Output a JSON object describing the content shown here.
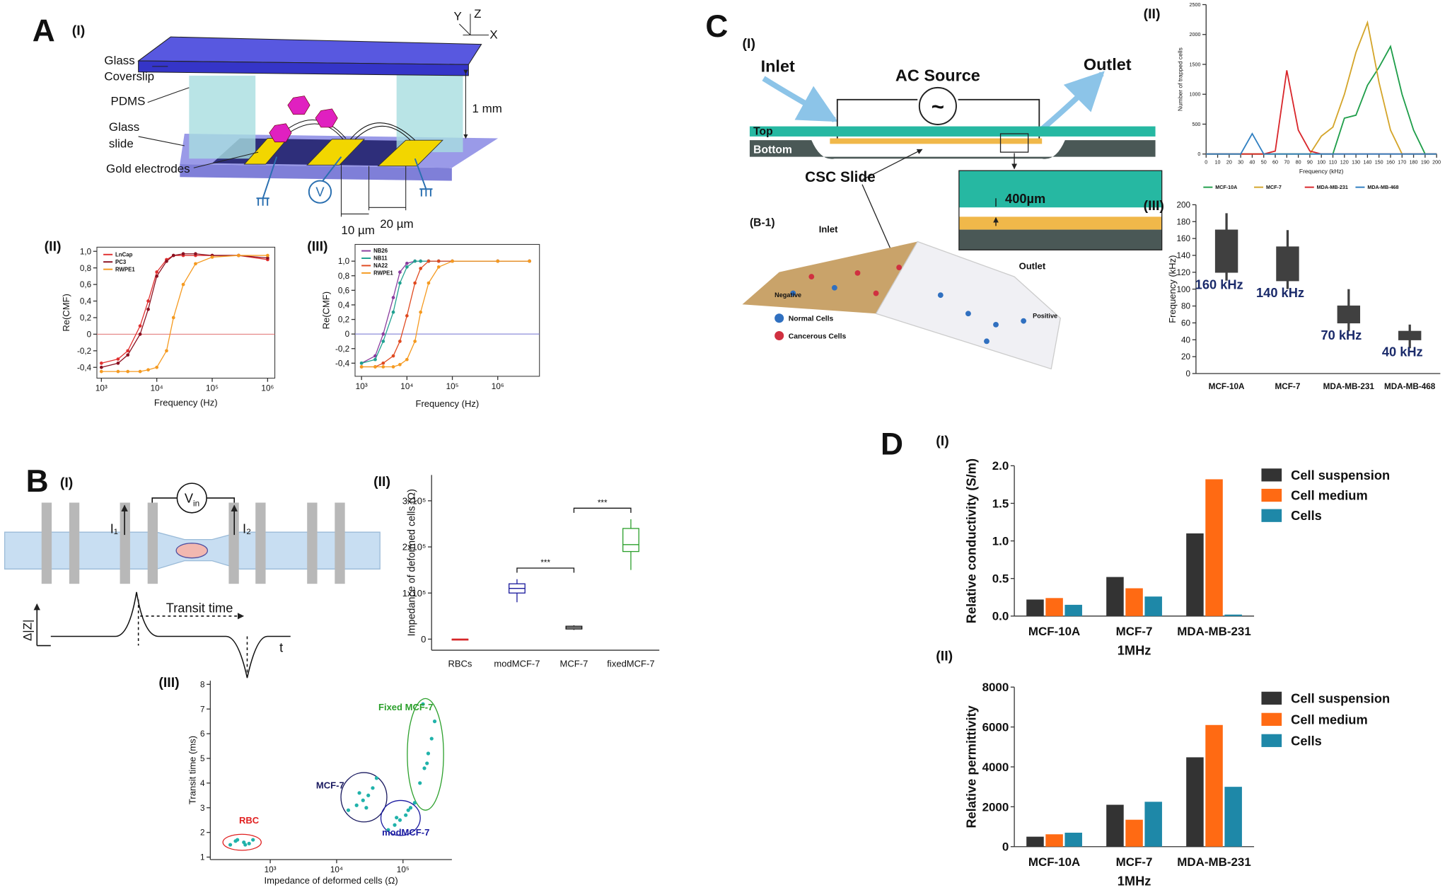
{
  "figure": {
    "panel_labels": [
      "A",
      "B",
      "C",
      "D"
    ],
    "diagram_subpanels": [
      "(I)",
      "(I)",
      "(I)"
    ],
    "diagram_a": {
      "coverslip": [
        "Glass",
        "Coverslip"
      ],
      "pdms": "PDMS",
      "slide": [
        "Glass",
        "slide"
      ],
      "electrodes": "Gold electrodes",
      "height": "1 mm",
      "gap_1": "10 µm",
      "gap_2": "20 µm",
      "voltage": "V",
      "axes": [
        "Y",
        "Z",
        "X"
      ]
    },
    "diagram_b": {
      "current_1": "I₁",
      "voltage": [
        "V",
        "in"
      ],
      "current_2": "I₂",
      "transit": "Transit time",
      "signal": "Δ|Z|",
      "time": "t"
    },
    "diagram_c": {
      "inlet": "Inlet",
      "source": "AC Source",
      "outlet": "Outlet",
      "top": "Top",
      "bottom": "Bottom",
      "slide": "CSC Slide",
      "sub": "(B-1)",
      "gap": "400µm",
      "symbol": "~",
      "inlet_3d": "Inlet",
      "outlet_3d": "Outlet",
      "negative": "Negative",
      "positive": "Positive",
      "normal": "Normal Cells",
      "cancer": "Cancerous Cells"
    }
  },
  "chart_data": [
    {
      "type": "line",
      "panel": "(II)",
      "ylabel": "Re(CMF)",
      "xlabel": "Frequency (Hz)",
      "xlog": true,
      "xlim": [
        830,
        1350000
      ],
      "xticks": [
        {
          "value": 1000,
          "label": "10³"
        },
        {
          "value": 10000,
          "label": "10⁴"
        },
        {
          "value": 100000,
          "label": "10⁵"
        },
        {
          "value": 1000000,
          "label": "10⁶"
        }
      ],
      "ylim": [
        -0.53,
        1.05
      ],
      "yticks": [
        {
          "value": -0.4,
          "label": "-0,4"
        },
        {
          "value": -0.2,
          "label": "-0,2"
        },
        0,
        {
          "value": 0.2,
          "label": "0,2"
        },
        {
          "value": 0.4,
          "label": "0,4"
        },
        {
          "value": 0.6,
          "label": "0,6"
        },
        {
          "value": 0.8,
          "label": "0,8"
        },
        {
          "value": 1,
          "label": "1,0"
        }
      ],
      "hline": 0,
      "hline_color": "#e07070",
      "legend": "upper-left",
      "x": [
        1000,
        2000,
        3000,
        5000,
        7000,
        10000,
        15000,
        20000,
        30000,
        50000,
        100000,
        300000,
        1000000
      ],
      "series": [
        {
          "name": "LnCap",
          "color": "#e03030",
          "values": [
            -0.35,
            -0.3,
            -0.2,
            0.1,
            0.4,
            0.75,
            0.9,
            0.95,
            0.95,
            0.95,
            0.95,
            0.95,
            0.9
          ]
        },
        {
          "name": "PC3",
          "color": "#8b1020",
          "values": [
            -0.4,
            -0.35,
            -0.25,
            0,
            0.3,
            0.7,
            0.88,
            0.95,
            0.97,
            0.97,
            0.95,
            0.95,
            0.92
          ]
        },
        {
          "name": "RWPE1",
          "color": "#f59a20",
          "values": [
            -0.45,
            -0.45,
            -0.45,
            -0.45,
            -0.43,
            -0.4,
            -0.2,
            0.2,
            0.6,
            0.85,
            0.93,
            0.95,
            0.95
          ]
        }
      ]
    },
    {
      "type": "line",
      "panel": "(III)",
      "ylabel": "Re(CMF)",
      "xlabel": "Frequency (Hz)",
      "xlog": true,
      "xlim": [
        720,
        8300000
      ],
      "xticks": [
        {
          "value": 1000,
          "label": "10³"
        },
        {
          "value": 10000,
          "label": "10⁴"
        },
        {
          "value": 100000,
          "label": "10⁵"
        },
        {
          "value": 1000000,
          "label": "10⁶"
        }
      ],
      "ylim": [
        -0.58,
        1.23
      ],
      "yticks": [
        {
          "value": -0.4,
          "label": "-0,4"
        },
        {
          "value": -0.2,
          "label": "-0,2"
        },
        0,
        {
          "value": 0.2,
          "label": "0,2"
        },
        {
          "value": 0.4,
          "label": "0,4"
        },
        {
          "value": 0.6,
          "label": "0,6"
        },
        {
          "value": 0.8,
          "label": "0,8"
        },
        {
          "value": 1,
          "label": "1,0"
        }
      ],
      "hline": 0,
      "hline_color": "#7070d0",
      "legend": "upper-left",
      "x": [
        1000,
        2000,
        3000,
        5000,
        7000,
        10000,
        15000,
        20000,
        30000,
        50000,
        100000,
        1000000,
        5000000
      ],
      "series": [
        {
          "name": "NB26",
          "color": "#8a3d9e",
          "values": [
            -0.4,
            -0.3,
            0,
            0.5,
            0.85,
            0.97,
            1,
            1,
            1,
            1,
            1,
            1,
            1
          ]
        },
        {
          "name": "NB11",
          "color": "#20a090",
          "values": [
            -0.4,
            -0.35,
            -0.1,
            0.3,
            0.7,
            0.92,
            1,
            1,
            1,
            1,
            1,
            1,
            1
          ]
        },
        {
          "name": "NA22",
          "color": "#e04a20",
          "values": [
            -0.45,
            -0.45,
            -0.4,
            -0.3,
            -0.1,
            0.25,
            0.7,
            0.9,
            1,
            1,
            1,
            1,
            1
          ]
        },
        {
          "name": "RWPE1",
          "color": "#f59a20",
          "values": [
            -0.45,
            -0.45,
            -0.45,
            -0.45,
            -0.42,
            -0.35,
            -0.1,
            0.3,
            0.7,
            0.92,
            1,
            1,
            1
          ]
        }
      ]
    },
    {
      "type": "box",
      "panel": "(II)",
      "ylabel": "Impedance of deformed cells (Ω)",
      "ylim": [
        -24000,
        356000
      ],
      "yticks": [
        0,
        {
          "value": 100000,
          "label": "1x10⁵"
        },
        {
          "value": 200000,
          "label": "2x10⁵"
        },
        {
          "value": 300000,
          "label": "3x10⁵"
        }
      ],
      "categories": [
        "RBCs",
        "modMCF-7",
        "MCF-7",
        "fixedMCF-7"
      ],
      "colors": [
        "#d62728",
        "#1a1a9c",
        "#111111",
        "#2ca02c"
      ],
      "low": [
        0,
        80000,
        20000,
        150000
      ],
      "q1": [
        0,
        100000,
        22000,
        190000
      ],
      "median": [
        0,
        110000,
        25000,
        205000
      ],
      "q3": [
        0,
        120000,
        28000,
        240000
      ],
      "high": [
        0,
        130000,
        30000,
        260000
      ],
      "significance": [
        "***",
        "***"
      ]
    },
    {
      "type": "scatter",
      "panel": "(III)",
      "ylabel": "Transit time (ms)",
      "xlabel": "Impedance of deformed cells (Ω)",
      "xlog": true,
      "xlim": [
        125,
        545000
      ],
      "xticks": [
        {
          "value": 1000,
          "label": "10³"
        },
        {
          "value": 10000,
          "label": "10⁴"
        },
        {
          "value": 100000,
          "label": "10⁵"
        }
      ],
      "ylim": [
        0.9,
        8.15
      ],
      "yticks": [
        1,
        2,
        3,
        4,
        5,
        6,
        7,
        8
      ],
      "marker_color": "#20b2aa",
      "series": [
        {
          "name": "RBC",
          "color": "#e02020",
          "x": [
            250,
            320,
            400,
            480,
            550,
            300,
            420
          ],
          "values": [
            1.5,
            1.7,
            1.6,
            1.55,
            1.7,
            1.65,
            1.5
          ]
        },
        {
          "name": "MCF-7",
          "color": "#1a1a60",
          "x": [
            15000,
            20000,
            25000,
            30000,
            35000,
            22000,
            28000,
            40000
          ],
          "values": [
            2.9,
            3.1,
            3.3,
            3.5,
            3.8,
            3.6,
            3,
            4.2
          ]
        },
        {
          "name": "Fixed MCF-7",
          "color": "#2ca02c",
          "x": [
            150000,
            180000,
            210000,
            240000,
            270000,
            300000,
            200000,
            230000
          ],
          "values": [
            3.2,
            4,
            4.6,
            5.2,
            5.8,
            6.5,
            7.2,
            4.8
          ]
        },
        {
          "name": "modMCF-7",
          "color": "#1a1aa0",
          "x": [
            60000,
            75000,
            90000,
            110000,
            130000,
            80000,
            120000
          ],
          "values": [
            2.1,
            2.3,
            2.5,
            2.7,
            3,
            2.6,
            2.9
          ]
        }
      ]
    },
    {
      "type": "line",
      "panel": "(II)",
      "ylabel": "Number of trapped cells",
      "xlabel": "Frequency (kHz)",
      "xlim": [
        0,
        200
      ],
      "xticks": [
        0,
        10,
        20,
        30,
        40,
        50,
        60,
        70,
        80,
        90,
        100,
        110,
        120,
        130,
        140,
        150,
        160,
        170,
        180,
        190,
        200
      ],
      "ylim": [
        0,
        2500
      ],
      "yticks": [
        0,
        500,
        1000,
        1500,
        2000,
        2500
      ],
      "legend": "below",
      "x": [
        0,
        10,
        20,
        30,
        40,
        50,
        60,
        70,
        80,
        90,
        100,
        110,
        120,
        130,
        140,
        150,
        160,
        170,
        180,
        190,
        200
      ],
      "series": [
        {
          "name": "MCF-10A",
          "color": "#1f9e4a",
          "values": [
            0,
            0,
            0,
            0,
            0,
            0,
            0,
            0,
            0,
            0,
            0,
            0,
            600,
            650,
            1150,
            1450,
            1800,
            1000,
            400,
            0,
            0
          ]
        },
        {
          "name": "MCF-7",
          "color": "#d4a52a",
          "values": [
            0,
            0,
            0,
            0,
            0,
            0,
            0,
            0,
            0,
            0,
            300,
            450,
            1000,
            1700,
            2200,
            1200,
            400,
            0,
            0,
            0,
            0
          ]
        },
        {
          "name": "MDA-MB-231",
          "color": "#d9262b",
          "values": [
            0,
            0,
            0,
            0,
            0,
            0,
            50,
            1400,
            400,
            50,
            0,
            0,
            0,
            0,
            0,
            0,
            0,
            0,
            0,
            0,
            0
          ]
        },
        {
          "name": "MDA-MB-468",
          "color": "#2f7fc1",
          "values": [
            0,
            0,
            0,
            0,
            340,
            0,
            0,
            0,
            0,
            0,
            0,
            0,
            0,
            0,
            0,
            0,
            0,
            0,
            0,
            0,
            0
          ]
        }
      ]
    },
    {
      "type": "box",
      "panel": "(III)",
      "ylabel": "Frequency (kHz)",
      "ylim": [
        0,
        200
      ],
      "yticks": [
        0,
        20,
        40,
        60,
        80,
        100,
        120,
        140,
        160,
        180,
        200
      ],
      "categories": [
        "MCF-10A",
        "MCF-7",
        "MDA-MB-231",
        "MDA-MB-468"
      ],
      "color": "#404040",
      "low": [
        110,
        100,
        50,
        30
      ],
      "q1": [
        120,
        110,
        60,
        40
      ],
      "q3": [
        170,
        150,
        80,
        50
      ],
      "high": [
        190,
        170,
        100,
        58
      ],
      "annotations": [
        "160 kHz",
        "140 kHz",
        "70 kHz",
        "40 kHz"
      ]
    },
    {
      "type": "bar",
      "panel": "(I)",
      "ylabel": "Relative conductivity  (S/m)",
      "xlabel": "1MHz",
      "ylim": [
        0,
        2
      ],
      "yticks": [
        {
          "value": 0,
          "label": "0.0"
        },
        0.5,
        {
          "value": 1,
          "label": "1.0"
        },
        1.5,
        {
          "value": 2,
          "label": "2.0"
        }
      ],
      "categories": [
        "MCF-10A",
        "MCF-7",
        "MDA-MB-231"
      ],
      "legend": "right",
      "series": [
        {
          "name": "Cell suspension",
          "color": "#333333",
          "values": [
            0.22,
            0.52,
            1.1
          ]
        },
        {
          "name": "Cell medium",
          "color": "#ff6a13",
          "values": [
            0.24,
            0.37,
            1.82
          ]
        },
        {
          "name": "Cells",
          "color": "#1e88a8",
          "values": [
            0.15,
            0.26,
            0.02
          ]
        }
      ]
    },
    {
      "type": "bar",
      "panel": "(II)",
      "ylabel": "Relative permittivity",
      "xlabel": "1MHz",
      "ylim": [
        0,
        8000
      ],
      "yticks": [
        0,
        2000,
        4000,
        6000,
        8000
      ],
      "categories": [
        "MCF-10A",
        "MCF-7",
        "MDA-MB-231"
      ],
      "legend": "right",
      "series": [
        {
          "name": "Cell suspension",
          "color": "#333333",
          "values": [
            500,
            2100,
            4480
          ]
        },
        {
          "name": "Cell medium",
          "color": "#ff6a13",
          "values": [
            620,
            1350,
            6100
          ]
        },
        {
          "name": "Cells",
          "color": "#1e88a8",
          "values": [
            700,
            2250,
            3000
          ]
        }
      ]
    }
  ]
}
